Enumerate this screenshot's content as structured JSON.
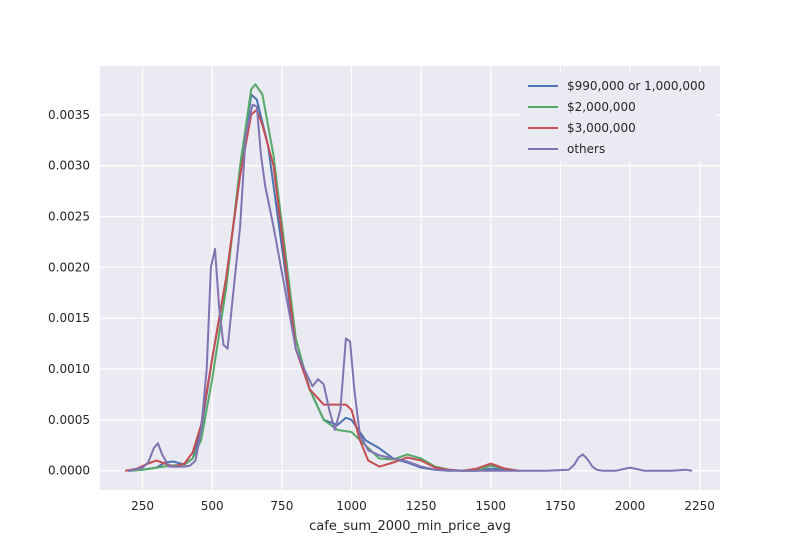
{
  "chart_data": {
    "type": "line",
    "title": "",
    "xlabel": "cafe_sum_2000_min_price_avg",
    "ylabel": "",
    "xlim": [
      97,
      2323
    ],
    "ylim": [
      -0.00019,
      0.00398
    ],
    "xticks": [
      250,
      500,
      750,
      1000,
      1250,
      1500,
      1750,
      2000,
      2250
    ],
    "yticks": [
      0.0,
      0.0005,
      0.001,
      0.0015,
      0.002,
      0.0025,
      0.003,
      0.0035
    ],
    "ytick_labels": [
      "0.0000",
      "0.0005",
      "0.0010",
      "0.0015",
      "0.0020",
      "0.0025",
      "0.0030",
      "0.0035"
    ],
    "grid": true,
    "legend_position": "top-right",
    "series": [
      {
        "name": "$990,000 or 1,000,000",
        "color": "#4c72b0",
        "x": [
          200,
          250,
          300,
          330,
          360,
          400,
          430,
          460,
          500,
          550,
          600,
          640,
          660,
          700,
          750,
          800,
          850,
          900,
          950,
          980,
          1000,
          1050,
          1100,
          1150,
          1200,
          1250,
          1300,
          1350,
          1400,
          1450,
          1500,
          1550,
          1600
        ],
        "y": [
          0.0,
          1e-05,
          3e-05,
          8e-05,
          9e-05,
          6e-05,
          0.00012,
          0.0004,
          0.0011,
          0.0019,
          0.0029,
          0.0037,
          0.00365,
          0.0032,
          0.0022,
          0.0012,
          0.0008,
          0.0005,
          0.00045,
          0.00052,
          0.0005,
          0.0003,
          0.00022,
          0.00012,
          8e-05,
          3e-05,
          1e-05,
          0.0,
          0.0,
          0.0,
          2e-05,
          1e-05,
          0.0
        ]
      },
      {
        "name": "$2,000,000",
        "color": "#55a868",
        "x": [
          200,
          250,
          300,
          350,
          400,
          430,
          460,
          500,
          550,
          600,
          640,
          655,
          680,
          720,
          760,
          800,
          850,
          900,
          950,
          1000,
          1050,
          1100,
          1150,
          1200,
          1250,
          1300,
          1350,
          1400,
          1450,
          1500,
          1550,
          1600
        ],
        "y": [
          0.0,
          1e-05,
          3e-05,
          5e-05,
          6e-05,
          0.00012,
          0.0003,
          0.0009,
          0.0018,
          0.003,
          0.00375,
          0.0038,
          0.0037,
          0.0031,
          0.0022,
          0.0013,
          0.0008,
          0.0005,
          0.0004,
          0.00038,
          0.00025,
          0.00012,
          0.00011,
          0.00016,
          0.00012,
          4e-05,
          1e-05,
          0.0,
          0.0,
          5e-05,
          2e-05,
          0.0
        ]
      },
      {
        "name": "$3,000,000",
        "color": "#c44e52",
        "x": [
          190,
          230,
          260,
          300,
          330,
          360,
          400,
          430,
          460,
          500,
          550,
          600,
          640,
          660,
          680,
          720,
          760,
          800,
          850,
          900,
          950,
          980,
          1000,
          1030,
          1060,
          1100,
          1150,
          1200,
          1250,
          1300,
          1350,
          1400,
          1450,
          1500,
          1550,
          1600
        ],
        "y": [
          0.0,
          2e-05,
          6e-05,
          0.0001,
          7e-05,
          4e-05,
          7e-05,
          0.00018,
          0.00045,
          0.0011,
          0.0019,
          0.0029,
          0.0035,
          0.00355,
          0.0034,
          0.003,
          0.0021,
          0.0012,
          0.0008,
          0.00065,
          0.00065,
          0.00065,
          0.0006,
          0.0003,
          0.0001,
          4e-05,
          8e-05,
          0.00013,
          0.0001,
          3e-05,
          1e-05,
          0.0,
          2e-05,
          7e-05,
          2e-05,
          0.0
        ]
      },
      {
        "name": "others",
        "color": "#8172b2",
        "x": [
          200,
          250,
          270,
          290,
          305,
          320,
          345,
          370,
          400,
          420,
          440,
          460,
          480,
          495,
          510,
          525,
          540,
          555,
          570,
          600,
          620,
          645,
          660,
          675,
          690,
          720,
          760,
          800,
          830,
          860,
          880,
          900,
          920,
          940,
          960,
          980,
          995,
          1010,
          1030,
          1060,
          1100,
          1150,
          1200,
          1250,
          1300,
          1400,
          1500,
          1600,
          1700,
          1780,
          1800,
          1815,
          1830,
          1845,
          1865,
          1880,
          1900,
          1950,
          2000,
          2050,
          2100,
          2150,
          2200,
          2220
        ],
        "y": [
          0.0,
          3e-05,
          8e-05,
          0.00022,
          0.00027,
          0.00016,
          4e-05,
          4e-05,
          4e-05,
          5e-05,
          0.0001,
          0.0004,
          0.001,
          0.002,
          0.00218,
          0.0016,
          0.00124,
          0.0012,
          0.0016,
          0.0024,
          0.0033,
          0.0036,
          0.00358,
          0.0031,
          0.0028,
          0.0024,
          0.0018,
          0.0012,
          0.001,
          0.00083,
          0.0009,
          0.00085,
          0.0006,
          0.0004,
          0.0006,
          0.0013,
          0.00127,
          0.0008,
          0.00035,
          0.0002,
          0.00015,
          0.00012,
          9e-05,
          4e-05,
          1e-05,
          0.0,
          0.0,
          0.0,
          0.0,
          1e-05,
          6e-05,
          0.00013,
          0.00016,
          0.00012,
          4e-05,
          1e-05,
          0.0,
          0.0,
          3e-05,
          0.0,
          0.0,
          0.0,
          1e-05,
          0.0
        ]
      }
    ]
  }
}
